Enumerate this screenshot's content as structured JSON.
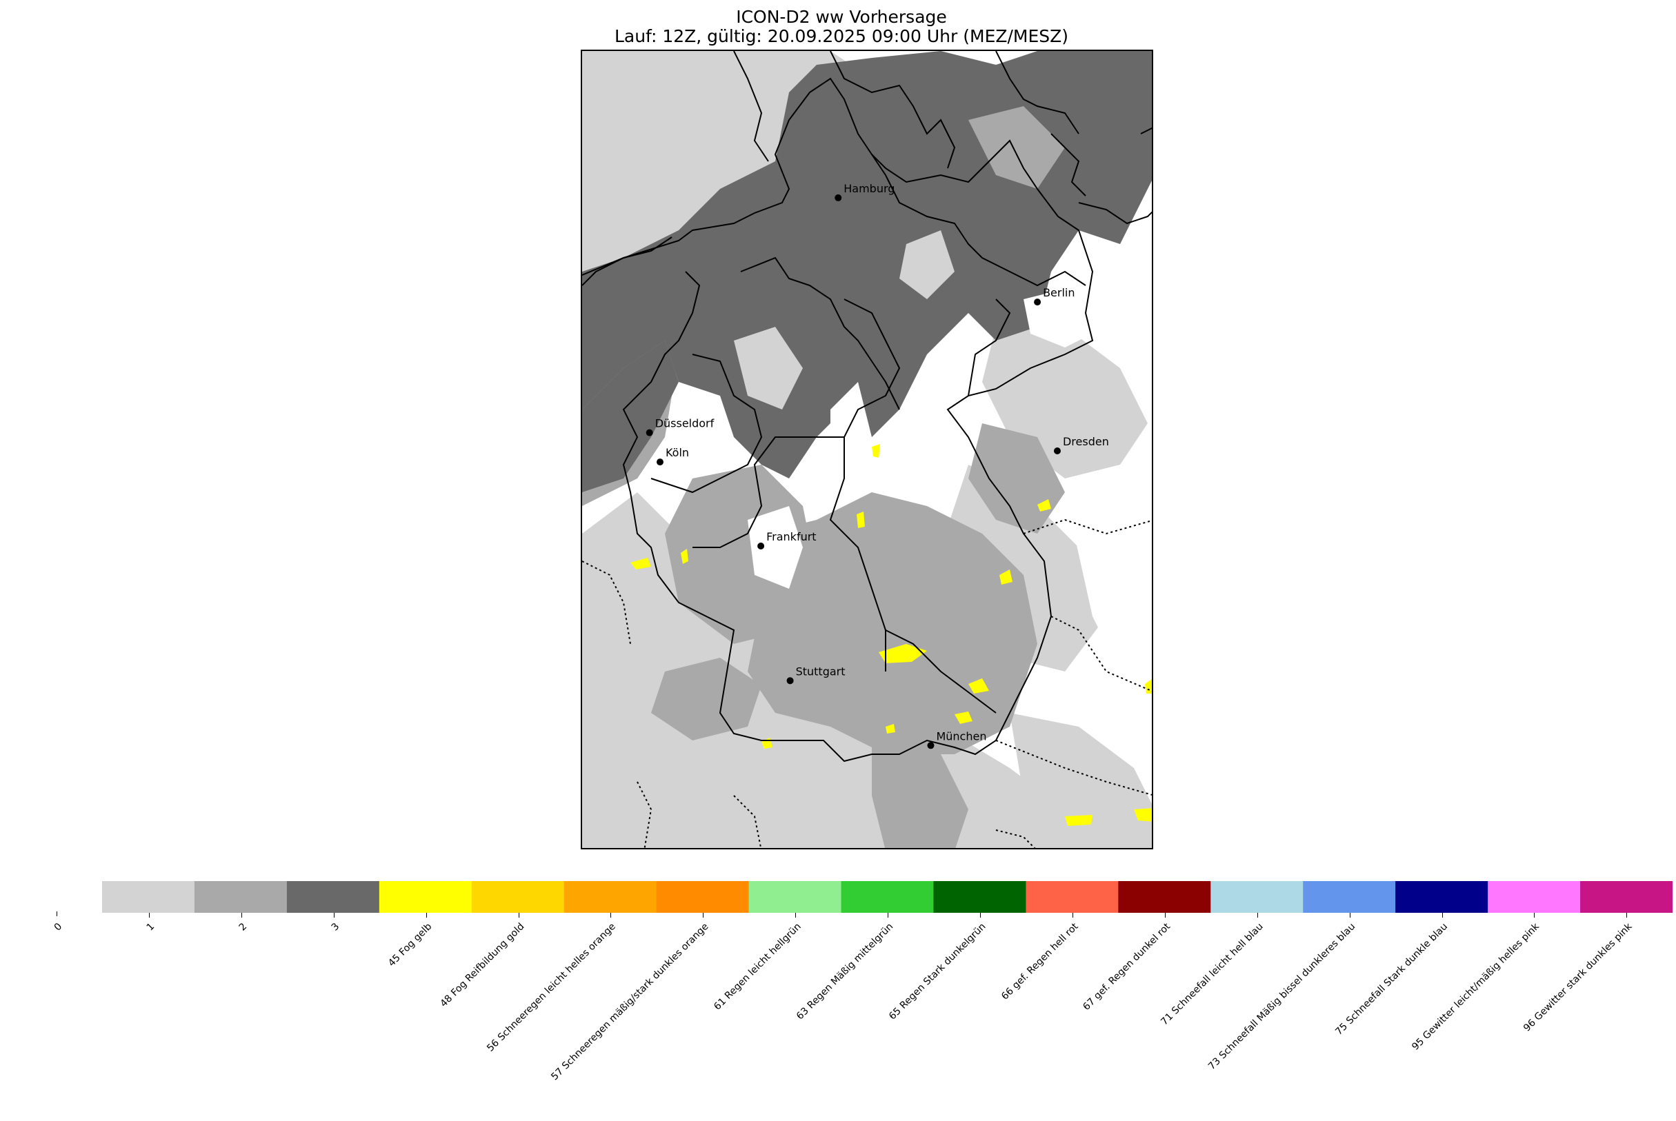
{
  "title": {
    "line1": "ICON-D2 ww Vorhersage",
    "line2": "Lauf: 12Z, gültig: 20.09.2025 09:00 Uhr (MEZ/MESZ)"
  },
  "cities": [
    {
      "name": "Hamburg",
      "lon": 10.0,
      "lat": 53.55
    },
    {
      "name": "Berlin",
      "lon": 13.4,
      "lat": 52.52
    },
    {
      "name": "Düsseldorf",
      "lon": 6.78,
      "lat": 51.23
    },
    {
      "name": "Köln",
      "lon": 6.96,
      "lat": 50.94
    },
    {
      "name": "Dresden",
      "lon": 13.74,
      "lat": 51.05
    },
    {
      "name": "Frankfurt",
      "lon": 8.68,
      "lat": 50.11
    },
    {
      "name": "Stuttgart",
      "lon": 9.18,
      "lat": 48.78
    },
    {
      "name": "München",
      "lon": 11.58,
      "lat": 48.14
    }
  ],
  "colorbar": {
    "ticks": [
      "0",
      "1",
      "2",
      "3",
      "45 Fog gelb",
      "48 Fog Reifbildung gold",
      "56 Schneeregen leicht helles orange",
      "57 Schneeregen mäßig/stark dunkles orange",
      "61 Regen leicht hellgrün",
      "63 Regen Mäßig mittelgrün",
      "65 Regen Stark dunkelgrün",
      "66 gef. Regen hell rot",
      "67 gef. Regen dunkel rot",
      "71 Schneefall leicht hell blau",
      "73 Schneefall Mäßig bissel dunkleres blau",
      "75 Schneefall Stark dunkle blau",
      "95 Gewitter leicht/mäßig helles pink",
      "96 Gewitter stark dunkles pink"
    ],
    "colors": [
      "#ffffff",
      "#d3d3d3",
      "#a9a9a9",
      "#696969",
      "#ffff00",
      "#ffd700",
      "#ffa500",
      "#ff8c00",
      "#90ee90",
      "#32cd32",
      "#006400",
      "#ff6347",
      "#8b0000",
      "#add8e6",
      "#6495ed",
      "#00008b",
      "#ff77ff",
      "#c71585"
    ]
  },
  "chart_data": {
    "type": "heatmap",
    "title": "ICON-D2 ww Vorhersage / Lauf: 12Z, gültig: 20.09.2025 09:00 Uhr (MEZ/MESZ)",
    "categories": [
      "0",
      "1",
      "2",
      "3",
      "45",
      "48",
      "56",
      "57",
      "61",
      "63",
      "65",
      "66",
      "67",
      "71",
      "73",
      "75",
      "95",
      "96"
    ],
    "dominant_codes": {
      "north": "3",
      "west": "2",
      "southeast": "1",
      "south": "2",
      "fog_spots": "45"
    }
  }
}
